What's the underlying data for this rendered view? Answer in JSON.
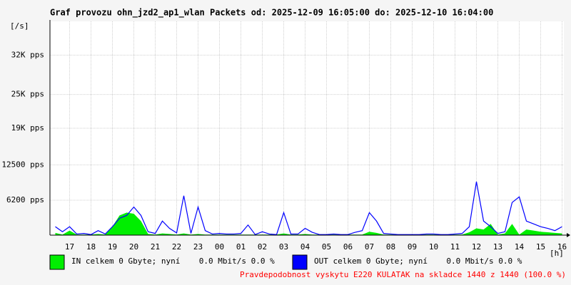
{
  "chart_data": {
    "type": "line",
    "title": "Graf provozu ohn_jzd2_ap1_wlan Packets od: 2025-12-09 16:05:00 do: 2025-12-10 16:04:00",
    "y_unit": "[/s]",
    "x_unit": "[h]",
    "note": "Pravdepodobnost vyskytu E220 KULATAK na skladce 1440 z 1440 (100.0 %)",
    "categories": [
      null,
      null,
      "17",
      null,
      null,
      "18",
      null,
      null,
      "19",
      null,
      null,
      "20",
      null,
      null,
      "21",
      null,
      null,
      "22",
      null,
      null,
      "23",
      null,
      null,
      "00",
      null,
      null,
      "01",
      null,
      null,
      "02",
      null,
      null,
      "03",
      null,
      null,
      "04",
      null,
      null,
      "05",
      null,
      null,
      "06",
      null,
      null,
      "07",
      null,
      null,
      "08",
      null,
      null,
      "09",
      null,
      null,
      "10",
      null,
      null,
      "11",
      null,
      null,
      "12",
      null,
      null,
      "13",
      null,
      null,
      "14",
      null,
      null,
      "15",
      null,
      null,
      "16"
    ],
    "ylim": [
      0,
      38000
    ],
    "yticks": [
      {
        "value": 6200,
        "label": "6200 pps"
      },
      {
        "value": 12500,
        "label": "12500 pps"
      },
      {
        "value": 19000,
        "label": "19K pps"
      },
      {
        "value": 25000,
        "label": "25K pps"
      },
      {
        "value": 32000,
        "label": "32K pps"
      }
    ],
    "grid": true,
    "series": [
      {
        "name": "IN celkem 0 Gbyte; nyní    0.0 Mbit/s 0.0 %",
        "color": "#00ee00",
        "fill": true,
        "values": [
          400,
          100,
          800,
          100,
          100,
          100,
          200,
          100,
          1500,
          3500,
          4000,
          3800,
          2500,
          200,
          100,
          300,
          200,
          100,
          300,
          100,
          200,
          100,
          100,
          100,
          100,
          100,
          100,
          100,
          100,
          100,
          100,
          100,
          300,
          100,
          100,
          200,
          100,
          100,
          100,
          100,
          100,
          100,
          100,
          100,
          600,
          400,
          100,
          100,
          100,
          100,
          100,
          100,
          100,
          100,
          100,
          100,
          100,
          100,
          500,
          1200,
          1000,
          2000,
          100,
          300,
          2000,
          100,
          1000,
          800,
          600,
          500,
          400,
          300
        ]
      },
      {
        "name": "OUT celkem 0 Gbyte; nyní    0.0 Mbit/s 0.0 %",
        "color": "#0000ff",
        "fill": false,
        "values": [
          1500,
          600,
          1500,
          200,
          300,
          100,
          800,
          200,
          1500,
          3000,
          3500,
          5000,
          3500,
          600,
          300,
          2500,
          1200,
          400,
          7000,
          300,
          5000,
          800,
          200,
          300,
          200,
          200,
          300,
          1800,
          100,
          600,
          200,
          100,
          4000,
          200,
          200,
          1200,
          500,
          100,
          100,
          200,
          100,
          100,
          500,
          800,
          4000,
          2500,
          300,
          200,
          100,
          100,
          100,
          100,
          200,
          200,
          100,
          100,
          200,
          300,
          1500,
          9500,
          2500,
          1500,
          300,
          600,
          5800,
          6800,
          2500,
          2000,
          1500,
          1200,
          800,
          1500
        ]
      }
    ]
  }
}
